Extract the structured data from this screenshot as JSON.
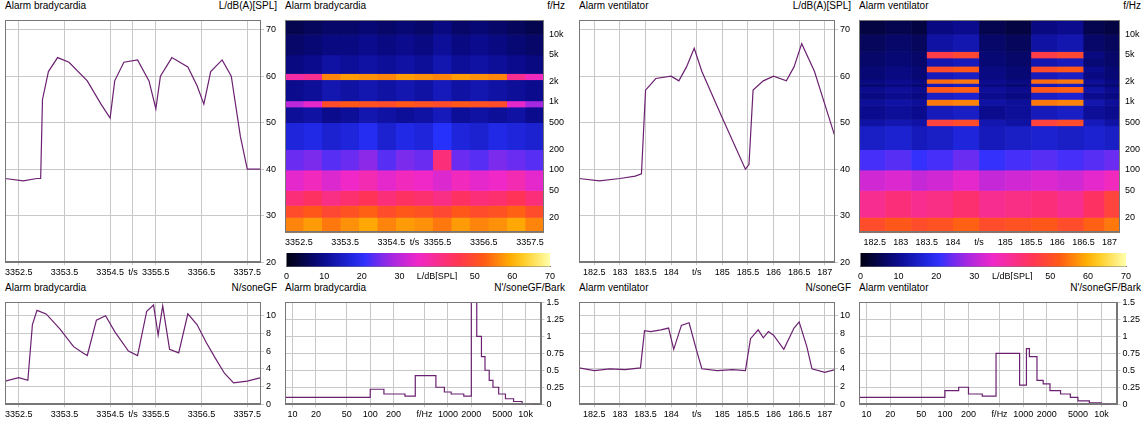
{
  "chart_data": [
    {
      "type": "line",
      "title": "Alarm bradycardia",
      "ylabel": "L/dB(A)[SPL]",
      "color": "#6b2170",
      "line_style": "solid",
      "grid": true,
      "x": [
        3352.2,
        3352.6,
        3352.9,
        3352.98,
        3353.02,
        3353.15,
        3353.35,
        3353.6,
        3354.0,
        3354.3,
        3354.5,
        3354.6,
        3354.8,
        3355.1,
        3355.35,
        3355.5,
        3355.6,
        3355.85,
        3356.2,
        3356.4,
        3356.55,
        3356.7,
        3356.95,
        3357.15,
        3357.35,
        3357.5,
        3357.8
      ],
      "values": [
        38,
        37.5,
        38,
        38,
        55,
        61,
        64,
        63,
        59,
        54,
        51,
        59,
        63,
        63.5,
        59,
        53,
        60,
        64,
        62,
        58,
        54,
        61,
        63.5,
        60,
        47,
        40,
        40
      ],
      "xlim": [
        3352.2,
        3357.8
      ],
      "xticks": [
        3352.5,
        3353.5,
        3354.5,
        {
          "value": 3355,
          "label": "t/s"
        },
        3355.5,
        3356.5,
        3357.5
      ],
      "ylim": [
        20,
        72
      ],
      "yticks": [
        20,
        30,
        40,
        50,
        60,
        70
      ]
    },
    {
      "type": "heatmap",
      "title": "Alarm bradycardia",
      "ylabel": "f/Hz",
      "log": "y",
      "grid": false,
      "x_edges": [
        3352.2,
        3352.6,
        3353.0,
        3353.4,
        3353.8,
        3354.2,
        3354.6,
        3355.0,
        3355.4,
        3355.8,
        3356.2,
        3356.6,
        3357.0,
        3357.4,
        3357.8
      ],
      "y_edges": [
        12,
        20,
        30,
        50,
        100,
        200,
        500,
        850,
        1050,
        2150,
        2650,
        5000,
        10000,
        16000
      ],
      "cells": [
        [
          56,
          58,
          55,
          57,
          59,
          56,
          58,
          57,
          55,
          58,
          56,
          57,
          59,
          56
        ],
        [
          50,
          52,
          49,
          51,
          53,
          50,
          52,
          51,
          49,
          52,
          50,
          51,
          53,
          50
        ],
        [
          42,
          44,
          41,
          43,
          45,
          42,
          44,
          43,
          41,
          44,
          42,
          43,
          45,
          42
        ],
        [
          34,
          36,
          33,
          35,
          37,
          34,
          36,
          35,
          33,
          36,
          34,
          35,
          37,
          34
        ],
        [
          24,
          25,
          23,
          24,
          26,
          23,
          25,
          24,
          42,
          24,
          23,
          25,
          24,
          23
        ],
        [
          17,
          18,
          16,
          17,
          19,
          16,
          18,
          17,
          20,
          17,
          16,
          18,
          17,
          16
        ],
        [
          11,
          12,
          10,
          11,
          13,
          12,
          11,
          12,
          14,
          11,
          12,
          11,
          12,
          10
        ],
        [
          30,
          34,
          50,
          52,
          51,
          50,
          52,
          51,
          50,
          52,
          51,
          50,
          34,
          28
        ],
        [
          10,
          11,
          13,
          12,
          13,
          12,
          13,
          12,
          14,
          12,
          13,
          12,
          11,
          10
        ],
        [
          38,
          40,
          56,
          58,
          57,
          56,
          58,
          57,
          56,
          58,
          57,
          56,
          40,
          36
        ],
        [
          9,
          10,
          12,
          11,
          12,
          11,
          12,
          11,
          13,
          11,
          12,
          11,
          10,
          9
        ],
        [
          7,
          8,
          9,
          9,
          10,
          9,
          10,
          9,
          11,
          9,
          10,
          9,
          8,
          7
        ],
        [
          5,
          6,
          7,
          7,
          8,
          7,
          8,
          7,
          9,
          7,
          8,
          7,
          6,
          5
        ]
      ],
      "xlim": [
        3352.2,
        3357.8
      ],
      "xticks": [
        3352.5,
        3353.5,
        3354.5,
        {
          "value": 3355,
          "label": "t/s"
        },
        3355.5,
        3356.5,
        3357.5
      ],
      "ylim": [
        12,
        16000
      ],
      "yticks": [
        20,
        50,
        100,
        200,
        500,
        {
          "value": 1000,
          "label": "1k"
        },
        {
          "value": 2000,
          "label": "2k"
        },
        {
          "value": 5000,
          "label": "5k"
        },
        {
          "value": 10000,
          "label": "10k"
        }
      ],
      "colorbar_range": [
        0,
        70
      ],
      "colorbar_ticks": [
        0,
        10,
        20,
        30,
        {
          "value": 40,
          "label": "L/dB[SPL]"
        },
        50,
        60,
        70
      ]
    },
    {
      "type": "line",
      "title": "Alarm bradycardia",
      "ylabel": "N/soneGF",
      "color": "#6b2170",
      "line_style": "solid",
      "grid": true,
      "x": [
        3352.2,
        3352.5,
        3352.7,
        3352.8,
        3352.9,
        3353.1,
        3353.4,
        3353.7,
        3353.9,
        3354.0,
        3354.2,
        3354.4,
        3354.6,
        3354.9,
        3355.1,
        3355.3,
        3355.45,
        3355.55,
        3355.65,
        3355.8,
        3356.0,
        3356.2,
        3356.4,
        3356.6,
        3356.8,
        3357.0,
        3357.2,
        3357.5,
        3357.8
      ],
      "values": [
        2.6,
        3.0,
        2.7,
        9,
        10.6,
        10.2,
        8.5,
        6.5,
        5.8,
        5.5,
        9.5,
        10,
        8.2,
        6,
        5.5,
        10.5,
        11.2,
        7.8,
        11.1,
        6.2,
        5.8,
        10.2,
        9,
        7,
        5.2,
        3.5,
        2.4,
        2.6,
        3.0
      ],
      "xlim": [
        3352.2,
        3357.8
      ],
      "xticks": [
        3352.5,
        3353.5,
        3354.5,
        {
          "value": 3355,
          "label": "t/s"
        },
        3355.5,
        3356.5,
        3357.5
      ],
      "ylim": [
        0,
        11.5
      ],
      "yticks": [
        0,
        2,
        4,
        6,
        8,
        10
      ]
    },
    {
      "type": "line",
      "title": "Alarm bradycardia",
      "ylabel": "N'/soneGF/Bark",
      "color": "#6b2170",
      "line_style": "steps",
      "log": "x",
      "grid": true,
      "x": [
        8,
        100,
        150,
        280,
        380,
        700,
        900,
        1100,
        1600,
        2000,
        2350,
        2700,
        3000,
        3400,
        3800,
        4500,
        5500,
        7000,
        9000,
        12000,
        15000
      ],
      "values": [
        0,
        0.1,
        0.22,
        0.15,
        0.12,
        0.42,
        0.25,
        0.18,
        0.15,
        0.12,
        1.5,
        1.0,
        0.7,
        0.5,
        0.35,
        0.25,
        0.15,
        0.08,
        0.04,
        0.01,
        0
      ],
      "xlim": [
        8,
        16000
      ],
      "xticks": [
        10,
        20,
        50,
        100,
        200,
        {
          "value": 500,
          "label": "f/Hz"
        },
        1000,
        2000,
        5000,
        {
          "value": 10000,
          "label": "10k"
        }
      ],
      "ylim": [
        0,
        1.5
      ],
      "yticks": [
        0,
        0.25,
        0.5,
        0.75,
        1,
        1.25,
        1.5
      ]
    },
    {
      "type": "line",
      "title": "Alarm ventilator",
      "ylabel": "L/dB(A)[SPL]",
      "color": "#6b2170",
      "line_style": "solid",
      "grid": true,
      "x": [
        182.2,
        182.6,
        183.0,
        183.3,
        183.42,
        183.5,
        183.7,
        184.0,
        184.15,
        184.3,
        184.45,
        184.6,
        185.0,
        185.45,
        185.52,
        185.6,
        185.8,
        186.0,
        186.25,
        186.4,
        186.55,
        186.8,
        187.0,
        187.2
      ],
      "values": [
        38,
        37.5,
        38,
        38.5,
        39,
        57,
        59.5,
        60,
        59,
        62,
        66,
        61,
        51,
        40,
        41,
        57,
        59,
        60,
        59,
        62,
        67,
        61,
        54,
        47
      ],
      "xlim": [
        182.2,
        187.2
      ],
      "xticks": [
        182.5,
        183,
        183.5,
        184,
        {
          "value": 184.5,
          "label": "t/s"
        },
        185,
        185.5,
        186,
        186.5,
        187
      ],
      "ylim": [
        20,
        72
      ],
      "yticks": [
        20,
        30,
        40,
        50,
        60,
        70
      ]
    },
    {
      "type": "heatmap",
      "title": "Alarm ventilator",
      "ylabel": "f/Hz",
      "log": "y",
      "grid": false,
      "x_edges": [
        182.2,
        182.7,
        183.2,
        183.5,
        184.0,
        184.5,
        185.0,
        185.5,
        186.0,
        186.5,
        186.9,
        187.2
      ],
      "y_edges": [
        12,
        20,
        50,
        100,
        200,
        450,
        560,
        900,
        1100,
        1400,
        1700,
        1900,
        2200,
        2800,
        3400,
        4500,
        5600,
        10000,
        16000
      ],
      "cells": [
        [
          50,
          52,
          50,
          51,
          53,
          50,
          51,
          52,
          50,
          53,
          55
        ],
        [
          40,
          42,
          40,
          41,
          43,
          40,
          41,
          42,
          40,
          44,
          48
        ],
        [
          32,
          33,
          31,
          32,
          34,
          31,
          32,
          33,
          32,
          34,
          36
        ],
        [
          22,
          23,
          21,
          22,
          24,
          21,
          22,
          23,
          22,
          23,
          24
        ],
        [
          15,
          16,
          14,
          15,
          17,
          14,
          15,
          16,
          15,
          16,
          15
        ],
        [
          12,
          13,
          12,
          48,
          50,
          13,
          12,
          48,
          50,
          14,
          12
        ],
        [
          10,
          11,
          10,
          14,
          15,
          10,
          11,
          14,
          15,
          11,
          10
        ],
        [
          11,
          12,
          11,
          55,
          56,
          12,
          11,
          55,
          56,
          13,
          11
        ],
        [
          9,
          10,
          9,
          15,
          16,
          10,
          9,
          15,
          16,
          10,
          9
        ],
        [
          10,
          11,
          10,
          52,
          53,
          11,
          10,
          52,
          53,
          12,
          10
        ],
        [
          8,
          9,
          8,
          14,
          15,
          9,
          8,
          14,
          15,
          9,
          8
        ],
        [
          9,
          10,
          9,
          54,
          55,
          10,
          9,
          54,
          55,
          11,
          9
        ],
        [
          8,
          9,
          8,
          14,
          15,
          9,
          8,
          14,
          15,
          9,
          8
        ],
        [
          8,
          9,
          8,
          50,
          52,
          9,
          8,
          50,
          52,
          10,
          8
        ],
        [
          7,
          8,
          7,
          13,
          14,
          8,
          7,
          13,
          14,
          8,
          7
        ],
        [
          7,
          8,
          7,
          47,
          49,
          8,
          7,
          47,
          49,
          9,
          7
        ],
        [
          6,
          7,
          6,
          12,
          13,
          7,
          6,
          12,
          13,
          7,
          6
        ],
        [
          4,
          5,
          4,
          9,
          10,
          5,
          4,
          9,
          10,
          5,
          4
        ]
      ],
      "xlim": [
        182.2,
        187.2
      ],
      "xticks": [
        182.5,
        183,
        183.5,
        184,
        {
          "value": 184.5,
          "label": "t/s"
        },
        185,
        185.5,
        186,
        186.5,
        187
      ],
      "ylim": [
        12,
        16000
      ],
      "yticks": [
        20,
        50,
        100,
        200,
        500,
        {
          "value": 1000,
          "label": "1k"
        },
        {
          "value": 2000,
          "label": "2k"
        },
        {
          "value": 5000,
          "label": "5k"
        },
        {
          "value": 10000,
          "label": "10k"
        }
      ],
      "colorbar_range": [
        0,
        70
      ],
      "colorbar_ticks": [
        0,
        10,
        20,
        30,
        {
          "value": 40,
          "label": "L/dB[SPL]"
        },
        50,
        60,
        70
      ]
    },
    {
      "type": "line",
      "title": "Alarm ventilator",
      "ylabel": "N/soneGF",
      "color": "#6b2170",
      "line_style": "solid",
      "grid": true,
      "x": [
        182.2,
        182.5,
        182.8,
        183.1,
        183.4,
        183.48,
        183.6,
        183.8,
        183.95,
        184.05,
        184.2,
        184.35,
        184.5,
        184.6,
        184.9,
        185.2,
        185.45,
        185.55,
        185.7,
        185.8,
        185.9,
        186.0,
        186.2,
        186.4,
        186.5,
        186.65,
        186.75,
        187.0,
        187.2
      ],
      "values": [
        4.1,
        3.8,
        4.0,
        3.9,
        4.1,
        8.3,
        8.2,
        8.4,
        8.6,
        6.2,
        8.9,
        9.2,
        6.0,
        4.0,
        3.8,
        3.9,
        3.8,
        7.4,
        8.4,
        7.5,
        8.2,
        7.8,
        6.2,
        8.6,
        9.3,
        6.5,
        4.0,
        3.6,
        3.9
      ],
      "xlim": [
        182.2,
        187.2
      ],
      "xticks": [
        182.5,
        183,
        183.5,
        184,
        {
          "value": 184.5,
          "label": "t/s"
        },
        185,
        185.5,
        186,
        186.5,
        187
      ],
      "ylim": [
        0,
        11.5
      ],
      "yticks": [
        0,
        2,
        4,
        6,
        8,
        10
      ]
    },
    {
      "type": "line",
      "title": "Alarm ventilator",
      "ylabel": "N'/soneGF/Bark",
      "color": "#6b2170",
      "line_style": "steps",
      "log": "x",
      "grid": true,
      "x": [
        8,
        100,
        150,
        200,
        300,
        450,
        900,
        1100,
        1200,
        1500,
        1800,
        2200,
        3000,
        4000,
        5000,
        7000,
        10000,
        13000
      ],
      "values": [
        0,
        0.1,
        0.2,
        0.25,
        0.15,
        0.12,
        0.75,
        0.28,
        0.82,
        0.7,
        0.35,
        0.3,
        0.2,
        0.15,
        0.1,
        0.05,
        0.02,
        0
      ],
      "xlim": [
        8,
        16000
      ],
      "xticks": [
        10,
        20,
        50,
        100,
        200,
        {
          "value": 500,
          "label": "f/Hz"
        },
        1000,
        2000,
        5000,
        {
          "value": 10000,
          "label": "10k"
        }
      ],
      "ylim": [
        0,
        1.5
      ],
      "yticks": [
        0,
        0.25,
        0.5,
        0.75,
        1,
        1.25,
        1.5
      ]
    }
  ]
}
